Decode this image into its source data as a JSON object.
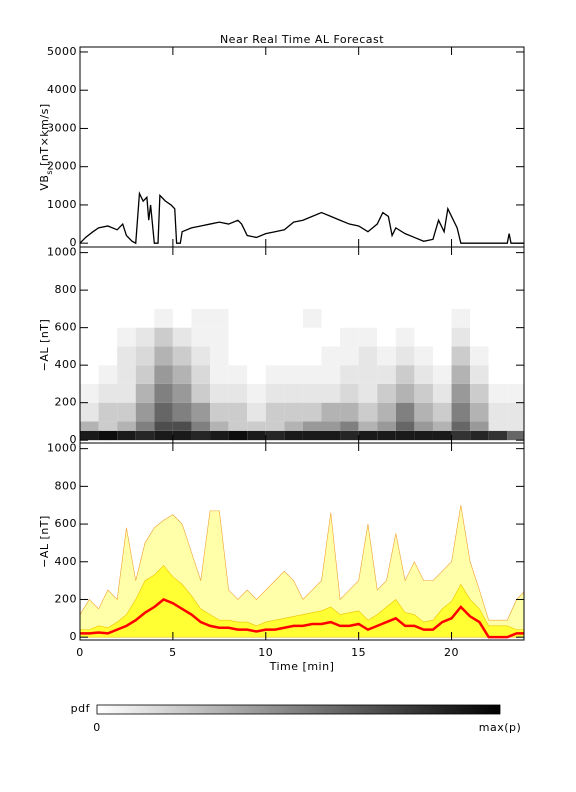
{
  "chart_data": [
    {
      "type": "line",
      "title": "Near Real Time AL Forecast",
      "ylabel": [
        "VB",
        "s",
        " [nT×km/s]"
      ],
      "color": "#000000",
      "xlim": [
        0,
        23.9
      ],
      "ylim": [
        -100,
        5130
      ],
      "xticks": [
        0,
        5,
        10,
        15,
        20
      ],
      "yticks": [
        0,
        1000,
        2000,
        3000,
        4000,
        5000
      ],
      "x": [
        0,
        0.3,
        0.7,
        1.0,
        1.5,
        2.0,
        2.3,
        2.5,
        2.8,
        3.0,
        3.2,
        3.4,
        3.6,
        3.7,
        3.8,
        4.0,
        4.2,
        4.3,
        4.6,
        4.9,
        5.1,
        5.2,
        5.4,
        5.5,
        6.0,
        6.5,
        7.0,
        7.5,
        8.0,
        8.5,
        8.7,
        9.0,
        9.5,
        10.0,
        10.5,
        11.0,
        11.5,
        12.0,
        12.5,
        13.0,
        13.5,
        14.0,
        14.5,
        15.0,
        15.5,
        16.0,
        16.3,
        16.6,
        16.8,
        17.0,
        17.5,
        18.0,
        18.5,
        19.0,
        19.3,
        19.6,
        19.8,
        20.0,
        20.3,
        20.5,
        21.0,
        22.0,
        23.0,
        23.1,
        23.2,
        23.9
      ],
      "values": [
        0,
        150,
        300,
        400,
        450,
        350,
        500,
        200,
        50,
        0,
        1300,
        1100,
        1200,
        600,
        1000,
        0,
        0,
        1250,
        1100,
        1000,
        900,
        0,
        0,
        300,
        400,
        450,
        500,
        550,
        500,
        600,
        500,
        200,
        150,
        250,
        300,
        350,
        550,
        600,
        700,
        800,
        700,
        600,
        500,
        450,
        300,
        500,
        800,
        700,
        200,
        400,
        250,
        150,
        50,
        100,
        600,
        300,
        900,
        700,
        400,
        0,
        0,
        0,
        0,
        250,
        0,
        0
      ]
    },
    {
      "type": "heatmap",
      "ylabel": "−AL [nT]",
      "colormap": [
        "#ffffff",
        "#000000"
      ],
      "xlim": [
        0,
        23.9
      ],
      "ylim": [
        -15,
        1030
      ],
      "xticks": [
        0,
        5,
        10,
        15,
        20
      ],
      "yticks": [
        0,
        200,
        400,
        600,
        800,
        1000
      ],
      "x_bins": [
        0,
        1,
        2,
        3,
        4,
        5,
        6,
        7,
        8,
        9,
        10,
        11,
        12,
        13,
        14,
        15,
        16,
        17,
        18,
        19,
        20,
        21,
        22,
        23,
        23.9
      ],
      "y_bins": [
        0,
        50,
        100,
        200,
        300,
        400,
        500,
        600,
        700
      ],
      "z": [
        [
          0.9,
          0.95,
          0.9,
          0.85,
          0.9,
          0.9,
          0.85,
          0.9,
          0.95,
          0.9,
          0.85,
          0.9,
          0.9,
          0.9,
          0.85,
          0.9,
          0.9,
          0.9,
          0.9,
          0.9,
          0.8,
          0.85,
          0.8,
          0.6
        ],
        [
          0.3,
          0.2,
          0.3,
          0.5,
          0.7,
          0.7,
          0.5,
          0.3,
          0.2,
          0.2,
          0.2,
          0.3,
          0.4,
          0.4,
          0.5,
          0.3,
          0.4,
          0.6,
          0.4,
          0.3,
          0.6,
          0.4,
          0.1,
          0.1
        ],
        [
          0.1,
          0.2,
          0.2,
          0.4,
          0.6,
          0.5,
          0.4,
          0.2,
          0.2,
          0.1,
          0.2,
          0.2,
          0.2,
          0.3,
          0.3,
          0.2,
          0.3,
          0.5,
          0.3,
          0.2,
          0.5,
          0.3,
          0.1,
          0.1
        ],
        [
          0.05,
          0.1,
          0.1,
          0.3,
          0.5,
          0.4,
          0.2,
          0.1,
          0.1,
          0.05,
          0.1,
          0.1,
          0.1,
          0.1,
          0.15,
          0.1,
          0.2,
          0.3,
          0.2,
          0.1,
          0.4,
          0.2,
          0.05,
          0.05
        ],
        [
          0,
          0.05,
          0.1,
          0.2,
          0.4,
          0.3,
          0.15,
          0.05,
          0.05,
          0,
          0.05,
          0.05,
          0.05,
          0.05,
          0.1,
          0.1,
          0.1,
          0.2,
          0.1,
          0.05,
          0.3,
          0.1,
          0,
          0
        ],
        [
          0,
          0,
          0.1,
          0.15,
          0.3,
          0.2,
          0.1,
          0.05,
          0,
          0,
          0,
          0,
          0,
          0.05,
          0.05,
          0.1,
          0.05,
          0.1,
          0.05,
          0,
          0.2,
          0.05,
          0,
          0
        ],
        [
          0,
          0,
          0.05,
          0.1,
          0.2,
          0.1,
          0.05,
          0.05,
          0,
          0,
          0,
          0,
          0,
          0,
          0.05,
          0.05,
          0,
          0.05,
          0,
          0,
          0.1,
          0,
          0,
          0
        ],
        [
          0,
          0,
          0,
          0,
          0.05,
          0,
          0.05,
          0.05,
          0,
          0,
          0,
          0,
          0.05,
          0,
          0,
          0,
          0,
          0,
          0,
          0,
          0.05,
          0,
          0,
          0
        ]
      ]
    },
    {
      "type": "area",
      "ylabel": "−AL [nT]",
      "xlabel": "Time [min]",
      "xtick_labels": true,
      "xlim": [
        0,
        23.9
      ],
      "ylim": [
        -15,
        1030
      ],
      "xticks": [
        0,
        5,
        10,
        15,
        20
      ],
      "yticks": [
        0,
        200,
        400,
        600,
        800,
        1000
      ],
      "x": [
        0,
        0.5,
        1,
        1.5,
        2,
        2.5,
        3,
        3.5,
        4,
        4.5,
        5,
        5.5,
        6,
        6.5,
        7,
        7.5,
        8,
        8.5,
        9,
        9.5,
        10,
        10.5,
        11,
        11.5,
        12,
        12.5,
        13,
        13.5,
        14,
        14.5,
        15,
        15.5,
        16,
        16.5,
        17,
        17.5,
        18,
        18.5,
        19,
        19.5,
        20,
        20.5,
        21,
        21.5,
        22,
        22.5,
        23,
        23.5,
        23.9
      ],
      "series": [
        {
          "color": "#ffffaa",
          "stroke": "#f0a030",
          "fill": true,
          "values": [
            120,
            200,
            150,
            250,
            200,
            580,
            300,
            500,
            580,
            620,
            650,
            600,
            450,
            300,
            670,
            670,
            250,
            200,
            250,
            200,
            250,
            300,
            350,
            300,
            200,
            250,
            300,
            660,
            200,
            250,
            300,
            600,
            250,
            300,
            550,
            300,
            400,
            300,
            300,
            350,
            400,
            700,
            400,
            250,
            90,
            90,
            90,
            200,
            240
          ]
        },
        {
          "color": "#ffff33",
          "stroke": "#f0c000",
          "fill": true,
          "values": [
            40,
            40,
            60,
            50,
            80,
            120,
            200,
            300,
            330,
            380,
            320,
            280,
            220,
            150,
            120,
            90,
            90,
            80,
            80,
            60,
            80,
            90,
            100,
            110,
            120,
            130,
            140,
            160,
            120,
            130,
            140,
            90,
            120,
            160,
            200,
            130,
            120,
            80,
            90,
            150,
            190,
            280,
            200,
            150,
            60,
            60,
            60,
            40,
            40
          ]
        },
        {
          "color": "#ff0000",
          "fill": false,
          "values": [
            20,
            20,
            25,
            20,
            40,
            60,
            90,
            130,
            160,
            200,
            180,
            150,
            120,
            80,
            60,
            50,
            50,
            40,
            40,
            30,
            40,
            40,
            50,
            60,
            60,
            70,
            70,
            80,
            60,
            60,
            70,
            40,
            60,
            80,
            100,
            60,
            60,
            40,
            40,
            80,
            100,
            160,
            110,
            80,
            0,
            0,
            0,
            20,
            20
          ]
        }
      ]
    }
  ],
  "colorbar": {
    "label": "pdf",
    "min": 0,
    "max_label": "max(p)",
    "colormap": [
      "#ffffff",
      "#000000"
    ]
  }
}
